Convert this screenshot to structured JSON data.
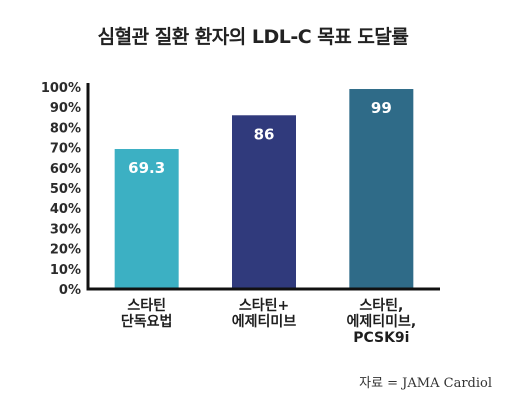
{
  "chart_data": {
    "type": "bar",
    "title": "심혈관 질환 환자의 LDL-C 목표 도달률",
    "categories": [
      [
        "스타틴",
        "단독요법"
      ],
      [
        "스타틴+",
        "에제티미브"
      ],
      [
        "스타틴,",
        "에제티미브,",
        "PCSK9i"
      ]
    ],
    "values": [
      69.3,
      86,
      99
    ],
    "data_labels": [
      "69.3",
      "86",
      "99"
    ],
    "bar_colors": [
      "#3cb0c3",
      "#303a7c",
      "#2f6b88"
    ],
    "ylim": [
      0,
      100
    ],
    "yticks": [
      0,
      10,
      20,
      30,
      40,
      50,
      60,
      70,
      80,
      90,
      100
    ],
    "ytick_labels": [
      "0%",
      "10%",
      "20%",
      "30%",
      "40%",
      "50%",
      "60%",
      "70%",
      "80%",
      "90%",
      "100%"
    ],
    "xlabel": "",
    "ylabel": "",
    "grid": false,
    "legend": "none"
  },
  "source": "자료 = JAMA Cardiol"
}
